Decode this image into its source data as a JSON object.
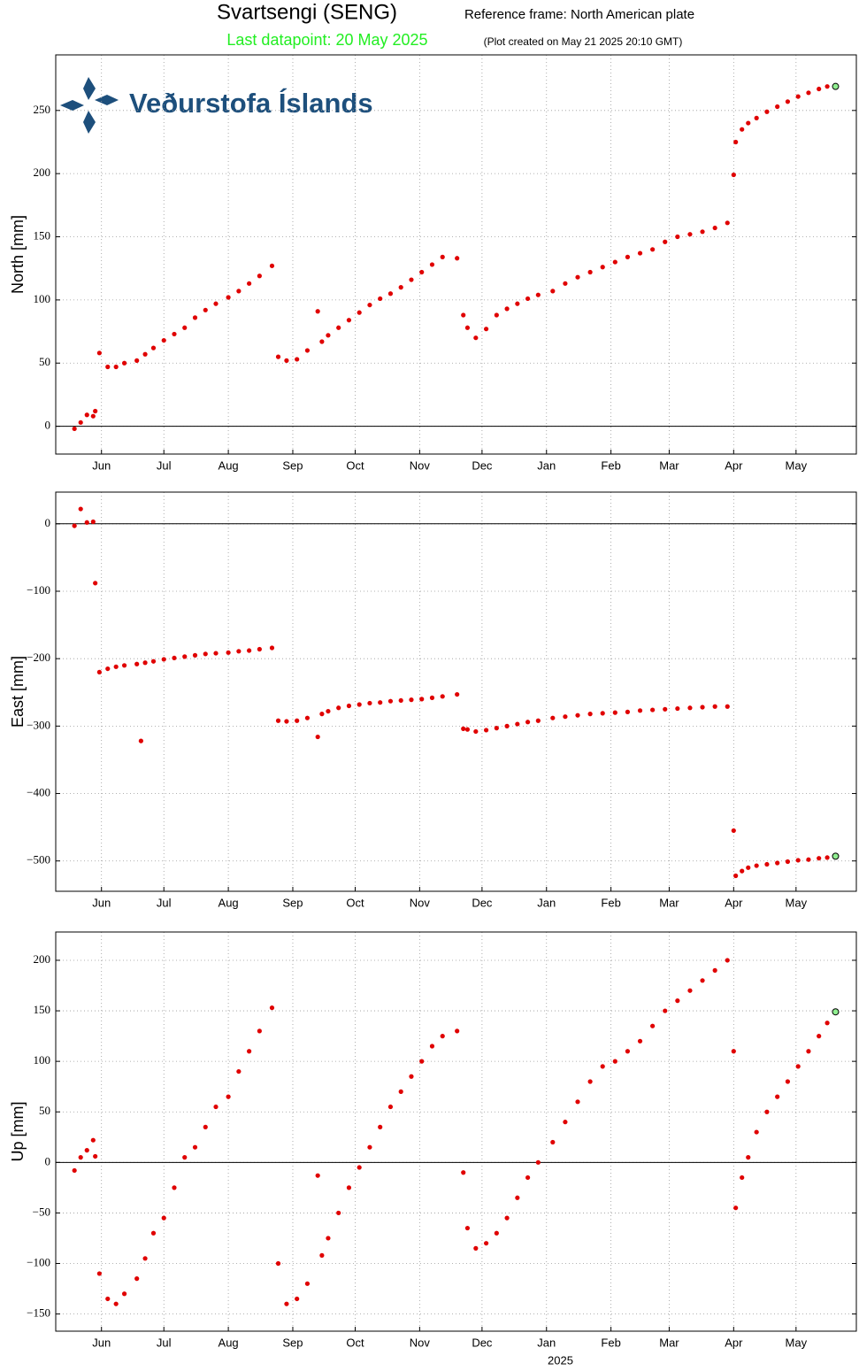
{
  "header": {
    "title": "Svartsengi (SENG)",
    "reference": "Reference frame: North American plate",
    "last_datapoint": "Last datapoint: 20 May 2025",
    "created": "(Plot created on May 21 2025 20:10 GMT)",
    "logo": "Veðurstofa Íslands"
  },
  "chart_data": [
    {
      "type": "scatter",
      "ylabel": "North [mm]",
      "color": "#e00000",
      "last_color": "#90ee90",
      "grid": true,
      "zero_line": true,
      "xlim": [
        "2024-05-10",
        "2025-05-30"
      ],
      "xticks": [
        {
          "value": "2024-06-01",
          "label": "Jun"
        },
        {
          "value": "2024-07-01",
          "label": "Jul"
        },
        {
          "value": "2024-08-01",
          "label": "Aug"
        },
        {
          "value": "2024-09-01",
          "label": "Sep"
        },
        {
          "value": "2024-10-01",
          "label": "Oct"
        },
        {
          "value": "2024-11-01",
          "label": "Nov"
        },
        {
          "value": "2024-12-01",
          "label": "Dec"
        },
        {
          "value": "2025-01-01",
          "label": "Jan"
        },
        {
          "value": "2025-02-01",
          "label": "Feb"
        },
        {
          "value": "2025-03-01",
          "label": "Mar"
        },
        {
          "value": "2025-04-01",
          "label": "Apr"
        },
        {
          "value": "2025-05-01",
          "label": "May"
        }
      ],
      "ylim": [
        -22,
        294
      ],
      "yticks": [
        0,
        50,
        100,
        150,
        200,
        250
      ],
      "x": [
        "2024-05-19",
        "2024-05-22",
        "2024-05-25",
        "2024-05-28",
        "2024-05-29",
        "2024-05-31",
        "2024-06-04",
        "2024-06-08",
        "2024-06-12",
        "2024-06-18",
        "2024-06-20",
        "2024-06-22",
        "2024-06-26",
        "2024-07-01",
        "2024-07-06",
        "2024-07-11",
        "2024-07-16",
        "2024-07-21",
        "2024-07-26",
        "2024-08-01",
        "2024-08-06",
        "2024-08-11",
        "2024-08-16",
        "2024-08-22",
        "2024-08-25",
        "2024-08-29",
        "2024-09-03",
        "2024-09-08",
        "2024-09-13",
        "2024-09-15",
        "2024-09-18",
        "2024-09-23",
        "2024-09-28",
        "2024-10-03",
        "2024-10-08",
        "2024-10-13",
        "2024-10-18",
        "2024-10-23",
        "2024-10-28",
        "2024-11-02",
        "2024-11-07",
        "2024-11-12",
        "2024-11-19",
        "2024-11-22",
        "2024-11-24",
        "2024-11-28",
        "2024-12-03",
        "2024-12-08",
        "2024-12-13",
        "2024-12-18",
        "2024-12-23",
        "2024-12-28",
        "2025-01-04",
        "2025-01-10",
        "2025-01-16",
        "2025-01-22",
        "2025-01-28",
        "2025-02-03",
        "2025-02-09",
        "2025-02-15",
        "2025-02-21",
        "2025-02-27",
        "2025-03-05",
        "2025-03-11",
        "2025-03-17",
        "2025-03-23",
        "2025-03-29",
        "2025-04-01",
        "2025-04-02",
        "2025-04-05",
        "2025-04-08",
        "2025-04-12",
        "2025-04-17",
        "2025-04-22",
        "2025-04-27",
        "2025-05-02",
        "2025-05-07",
        "2025-05-12",
        "2025-05-16",
        "2025-05-20"
      ],
      "values": [
        -2,
        3,
        9,
        8,
        12,
        58,
        47,
        47,
        50,
        52,
        null,
        57,
        62,
        68,
        73,
        78,
        86,
        92,
        97,
        102,
        107,
        113,
        119,
        127,
        55,
        52,
        53,
        60,
        91,
        67,
        72,
        78,
        84,
        90,
        96,
        101,
        105,
        110,
        116,
        122,
        128,
        134,
        133,
        88,
        78,
        70,
        77,
        88,
        93,
        97,
        101,
        104,
        107,
        113,
        118,
        122,
        126,
        130,
        134,
        137,
        140,
        146,
        150,
        152,
        154,
        157,
        161,
        199,
        225,
        235,
        240,
        244,
        249,
        253,
        257,
        261,
        264,
        267,
        269,
        269
      ]
    },
    {
      "type": "scatter",
      "ylabel": "East [mm]",
      "color": "#e00000",
      "last_color": "#90ee90",
      "grid": true,
      "zero_line": true,
      "xlim": [
        "2024-05-10",
        "2025-05-30"
      ],
      "xticks": [
        {
          "value": "2024-06-01",
          "label": "Jun"
        },
        {
          "value": "2024-07-01",
          "label": "Jul"
        },
        {
          "value": "2024-08-01",
          "label": "Aug"
        },
        {
          "value": "2024-09-01",
          "label": "Sep"
        },
        {
          "value": "2024-10-01",
          "label": "Oct"
        },
        {
          "value": "2024-11-01",
          "label": "Nov"
        },
        {
          "value": "2024-12-01",
          "label": "Dec"
        },
        {
          "value": "2025-01-01",
          "label": "Jan"
        },
        {
          "value": "2025-02-01",
          "label": "Feb"
        },
        {
          "value": "2025-03-01",
          "label": "Mar"
        },
        {
          "value": "2025-04-01",
          "label": "Apr"
        },
        {
          "value": "2025-05-01",
          "label": "May"
        }
      ],
      "ylim": [
        -545,
        47
      ],
      "yticks": [
        {
          "value": -500,
          "label": "−500"
        },
        {
          "value": -400,
          "label": "−400"
        },
        {
          "value": -300,
          "label": "−300"
        },
        {
          "value": -200,
          "label": "−200"
        },
        {
          "value": -100,
          "label": "−100"
        },
        0
      ],
      "x": [
        "2024-05-19",
        "2024-05-22",
        "2024-05-25",
        "2024-05-28",
        "2024-05-29",
        "2024-05-31",
        "2024-06-04",
        "2024-06-08",
        "2024-06-12",
        "2024-06-18",
        "2024-06-20",
        "2024-06-22",
        "2024-06-26",
        "2024-07-01",
        "2024-07-06",
        "2024-07-11",
        "2024-07-16",
        "2024-07-21",
        "2024-07-26",
        "2024-08-01",
        "2024-08-06",
        "2024-08-11",
        "2024-08-16",
        "2024-08-22",
        "2024-08-25",
        "2024-08-29",
        "2024-09-03",
        "2024-09-08",
        "2024-09-13",
        "2024-09-15",
        "2024-09-18",
        "2024-09-23",
        "2024-09-28",
        "2024-10-03",
        "2024-10-08",
        "2024-10-13",
        "2024-10-18",
        "2024-10-23",
        "2024-10-28",
        "2024-11-02",
        "2024-11-07",
        "2024-11-12",
        "2024-11-19",
        "2024-11-22",
        "2024-11-24",
        "2024-11-28",
        "2024-12-03",
        "2024-12-08",
        "2024-12-13",
        "2024-12-18",
        "2024-12-23",
        "2024-12-28",
        "2025-01-04",
        "2025-01-10",
        "2025-01-16",
        "2025-01-22",
        "2025-01-28",
        "2025-02-03",
        "2025-02-09",
        "2025-02-15",
        "2025-02-21",
        "2025-02-27",
        "2025-03-05",
        "2025-03-11",
        "2025-03-17",
        "2025-03-23",
        "2025-03-29",
        "2025-04-01",
        "2025-04-02",
        "2025-04-05",
        "2025-04-08",
        "2025-04-12",
        "2025-04-17",
        "2025-04-22",
        "2025-04-27",
        "2025-05-02",
        "2025-05-07",
        "2025-05-12",
        "2025-05-16",
        "2025-05-20"
      ],
      "values": [
        -3,
        22,
        2,
        3,
        -88,
        -220,
        -215,
        -212,
        -210,
        -208,
        -322,
        -206,
        -204,
        -201,
        -199,
        -197,
        -195,
        -193,
        -192,
        -191,
        -189,
        -188,
        -186,
        -184,
        -292,
        -293,
        -292,
        -288,
        -316,
        -282,
        -278,
        -273,
        -270,
        -268,
        -266,
        -265,
        -263,
        -262,
        -261,
        -260,
        -258,
        -256,
        -253,
        -304,
        -305,
        -308,
        -306,
        -303,
        -300,
        -297,
        -294,
        -292,
        -288,
        -286,
        -284,
        -282,
        -281,
        -280,
        -279,
        -277,
        -276,
        -275,
        -274,
        -273,
        -272,
        -271,
        -271,
        -455,
        -522,
        -515,
        -510,
        -507,
        -505,
        -503,
        -501,
        -499,
        -498,
        -496,
        -495,
        -493
      ]
    },
    {
      "type": "scatter",
      "ylabel": "Up [mm]",
      "xlabel": "2025",
      "color": "#e00000",
      "last_color": "#90ee90",
      "grid": true,
      "zero_line": true,
      "xlim": [
        "2024-05-10",
        "2025-05-30"
      ],
      "xticks": [
        {
          "value": "2024-06-01",
          "label": "Jun"
        },
        {
          "value": "2024-07-01",
          "label": "Jul"
        },
        {
          "value": "2024-08-01",
          "label": "Aug"
        },
        {
          "value": "2024-09-01",
          "label": "Sep"
        },
        {
          "value": "2024-10-01",
          "label": "Oct"
        },
        {
          "value": "2024-11-01",
          "label": "Nov"
        },
        {
          "value": "2024-12-01",
          "label": "Dec"
        },
        {
          "value": "2025-01-01",
          "label": "Jan"
        },
        {
          "value": "2025-02-01",
          "label": "Feb"
        },
        {
          "value": "2025-03-01",
          "label": "Mar"
        },
        {
          "value": "2025-04-01",
          "label": "Apr"
        },
        {
          "value": "2025-05-01",
          "label": "May"
        }
      ],
      "ylim": [
        -167,
        228
      ],
      "yticks": [
        {
          "value": -150,
          "label": "−150"
        },
        {
          "value": -100,
          "label": "−100"
        },
        {
          "value": -50,
          "label": "−50"
        },
        0,
        50,
        100,
        150,
        200
      ],
      "x": [
        "2024-05-19",
        "2024-05-22",
        "2024-05-25",
        "2024-05-28",
        "2024-05-29",
        "2024-05-31",
        "2024-06-04",
        "2024-06-08",
        "2024-06-12",
        "2024-06-18",
        "2024-06-20",
        "2024-06-22",
        "2024-06-26",
        "2024-07-01",
        "2024-07-06",
        "2024-07-11",
        "2024-07-16",
        "2024-07-21",
        "2024-07-26",
        "2024-08-01",
        "2024-08-06",
        "2024-08-11",
        "2024-08-16",
        "2024-08-22",
        "2024-08-25",
        "2024-08-29",
        "2024-09-03",
        "2024-09-08",
        "2024-09-13",
        "2024-09-15",
        "2024-09-18",
        "2024-09-23",
        "2024-09-28",
        "2024-10-03",
        "2024-10-08",
        "2024-10-13",
        "2024-10-18",
        "2024-10-23",
        "2024-10-28",
        "2024-11-02",
        "2024-11-07",
        "2024-11-12",
        "2024-11-19",
        "2024-11-22",
        "2024-11-24",
        "2024-11-28",
        "2024-12-03",
        "2024-12-08",
        "2024-12-13",
        "2024-12-18",
        "2024-12-23",
        "2024-12-28",
        "2025-01-04",
        "2025-01-10",
        "2025-01-16",
        "2025-01-22",
        "2025-01-28",
        "2025-02-03",
        "2025-02-09",
        "2025-02-15",
        "2025-02-21",
        "2025-02-27",
        "2025-03-05",
        "2025-03-11",
        "2025-03-17",
        "2025-03-23",
        "2025-03-29",
        "2025-04-01",
        "2025-04-02",
        "2025-04-05",
        "2025-04-08",
        "2025-04-12",
        "2025-04-17",
        "2025-04-22",
        "2025-04-27",
        "2025-05-02",
        "2025-05-07",
        "2025-05-12",
        "2025-05-16",
        "2025-05-20"
      ],
      "values": [
        -8,
        5,
        12,
        22,
        6,
        -110,
        -135,
        -140,
        -130,
        -115,
        null,
        -95,
        -70,
        -55,
        -25,
        5,
        15,
        35,
        55,
        65,
        90,
        110,
        130,
        153,
        -100,
        -140,
        -135,
        -120,
        -13,
        -92,
        -75,
        -50,
        -25,
        -5,
        15,
        35,
        55,
        70,
        85,
        100,
        115,
        125,
        130,
        -10,
        -65,
        -85,
        -80,
        -70,
        -55,
        -35,
        -15,
        0,
        20,
        40,
        60,
        80,
        95,
        100,
        110,
        120,
        135,
        150,
        160,
        170,
        180,
        190,
        200,
        110,
        -45,
        -15,
        5,
        30,
        50,
        65,
        80,
        95,
        110,
        125,
        138,
        149
      ]
    }
  ]
}
